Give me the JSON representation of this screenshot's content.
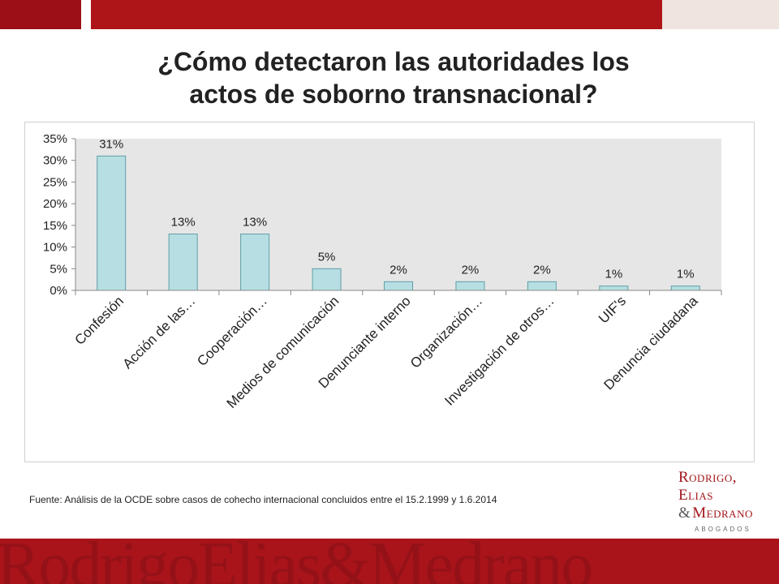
{
  "slide": {
    "title_line1": "¿Cómo detectaron las autoridades los",
    "title_line2": "actos de soborno transnacional?",
    "source": "Fuente: Análisis de la OCDE sobre casos de cohecho internacional concluidos entre el 15.2.1999 y 1.6.2014"
  },
  "logo": {
    "line1": "Rodrigo,",
    "line2": "Elias",
    "amp": "&",
    "line3": "Medrano",
    "sub": "ABOGADOS",
    "watermark": "RodrigoElias&Medrano"
  },
  "colors": {
    "brand_red": "#ad1519",
    "bar_fill": "#b7dfe3",
    "bar_stroke": "#5f9fa6",
    "plot_bg": "#e6e6e6"
  },
  "chart_data": {
    "type": "bar",
    "title": "",
    "xlabel": "",
    "ylabel": "",
    "categories": [
      "Confesión",
      "Acción de las…",
      "Cooperación…",
      "Medios de comunicación",
      "Denunciante interno",
      "Organización…",
      "Investigación de otros…",
      "UIF's",
      "Denuncia ciudadana"
    ],
    "values": [
      31,
      13,
      13,
      5,
      2,
      2,
      2,
      1,
      1
    ],
    "data_labels": [
      "31%",
      "13%",
      "13%",
      "5%",
      "2%",
      "2%",
      "2%",
      "1%",
      "1%"
    ],
    "ylim": [
      0,
      35
    ],
    "yticks": [
      0,
      5,
      10,
      15,
      20,
      25,
      30,
      35
    ],
    "ytick_labels": [
      "0%",
      "5%",
      "10%",
      "15%",
      "20%",
      "25%",
      "30%",
      "35%"
    ],
    "grid": false,
    "legend": "none"
  }
}
